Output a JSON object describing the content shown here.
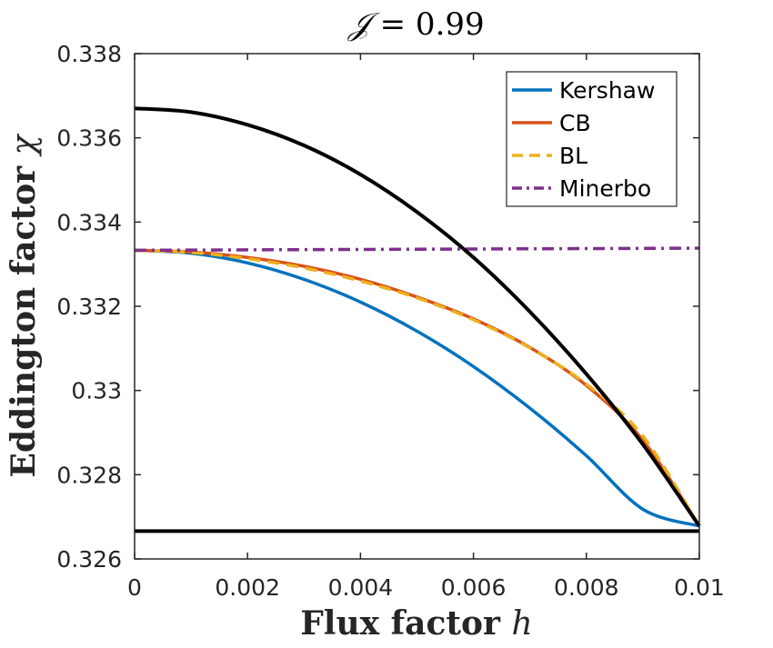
{
  "chart_data": {
    "type": "line",
    "title_symbol": "𝒥",
    "title_value": " = 0.99",
    "xlabel": "Flux factor",
    "xlabel_var": "h",
    "ylabel": "Eddington factor",
    "ylabel_var": "χ",
    "xlim": [
      0,
      0.01
    ],
    "ylim": [
      0.326,
      0.338
    ],
    "xticks": [
      0,
      0.002,
      0.004,
      0.006,
      0.008,
      0.01
    ],
    "xtick_labels": [
      "0",
      "0.002",
      "0.004",
      "0.006",
      "0.008",
      "0.01"
    ],
    "yticks": [
      0.326,
      0.328,
      0.33,
      0.332,
      0.334,
      0.336,
      0.338
    ],
    "ytick_labels": [
      "0.326",
      "0.328",
      "0.33",
      "0.332",
      "0.334",
      "0.336",
      "0.338"
    ],
    "legend_position": "top-right",
    "series": [
      {
        "name": "Kershaw",
        "color": "#0072BD",
        "dash": "solid",
        "legend": true,
        "x": [
          0,
          0.001,
          0.002,
          0.003,
          0.004,
          0.005,
          0.006,
          0.007,
          0.008,
          0.009,
          0.01
        ],
        "y": [
          0.33333,
          0.33326,
          0.33303,
          0.33264,
          0.3321,
          0.33141,
          0.33057,
          0.32958,
          0.32845,
          0.32718,
          0.32678
        ]
      },
      {
        "name": "CB",
        "color": "#D95319",
        "dash": "solid",
        "legend": true,
        "x": [
          0,
          0.001,
          0.002,
          0.003,
          0.004,
          0.005,
          0.006,
          0.007,
          0.008,
          0.009,
          0.01
        ],
        "y": [
          0.33333,
          0.33329,
          0.33316,
          0.33295,
          0.33264,
          0.33222,
          0.3317,
          0.33102,
          0.33012,
          0.32882,
          0.32678
        ]
      },
      {
        "name": "BL",
        "color": "#EDB120",
        "dash": "dashed",
        "legend": true,
        "x": [
          0,
          0.001,
          0.002,
          0.003,
          0.004,
          0.005,
          0.006,
          0.007,
          0.008,
          0.009,
          0.01
        ],
        "y": [
          0.33333,
          0.33328,
          0.33313,
          0.33291,
          0.3326,
          0.3322,
          0.33168,
          0.33101,
          0.33015,
          0.32892,
          0.32678
        ]
      },
      {
        "name": "Minerbo",
        "color": "#7E2F8E",
        "dash": "dashdot",
        "legend": true,
        "x": [
          0,
          0.01
        ],
        "y": [
          0.33333,
          0.33338
        ]
      },
      {
        "name": "Upper bound",
        "color": "#000000",
        "dash": "solid",
        "legend": false,
        "x": [
          0,
          0.001,
          0.002,
          0.003,
          0.004,
          0.005,
          0.006,
          0.007,
          0.008,
          0.009,
          0.01
        ],
        "y": [
          0.3367,
          0.33661,
          0.33631,
          0.33582,
          0.33513,
          0.33424,
          0.33316,
          0.33187,
          0.33039,
          0.32872,
          0.32678
        ]
      },
      {
        "name": "Lower bound",
        "color": "#000000",
        "dash": "solid",
        "legend": false,
        "x": [
          0,
          0.01
        ],
        "y": [
          0.32666,
          0.32666
        ]
      }
    ]
  }
}
